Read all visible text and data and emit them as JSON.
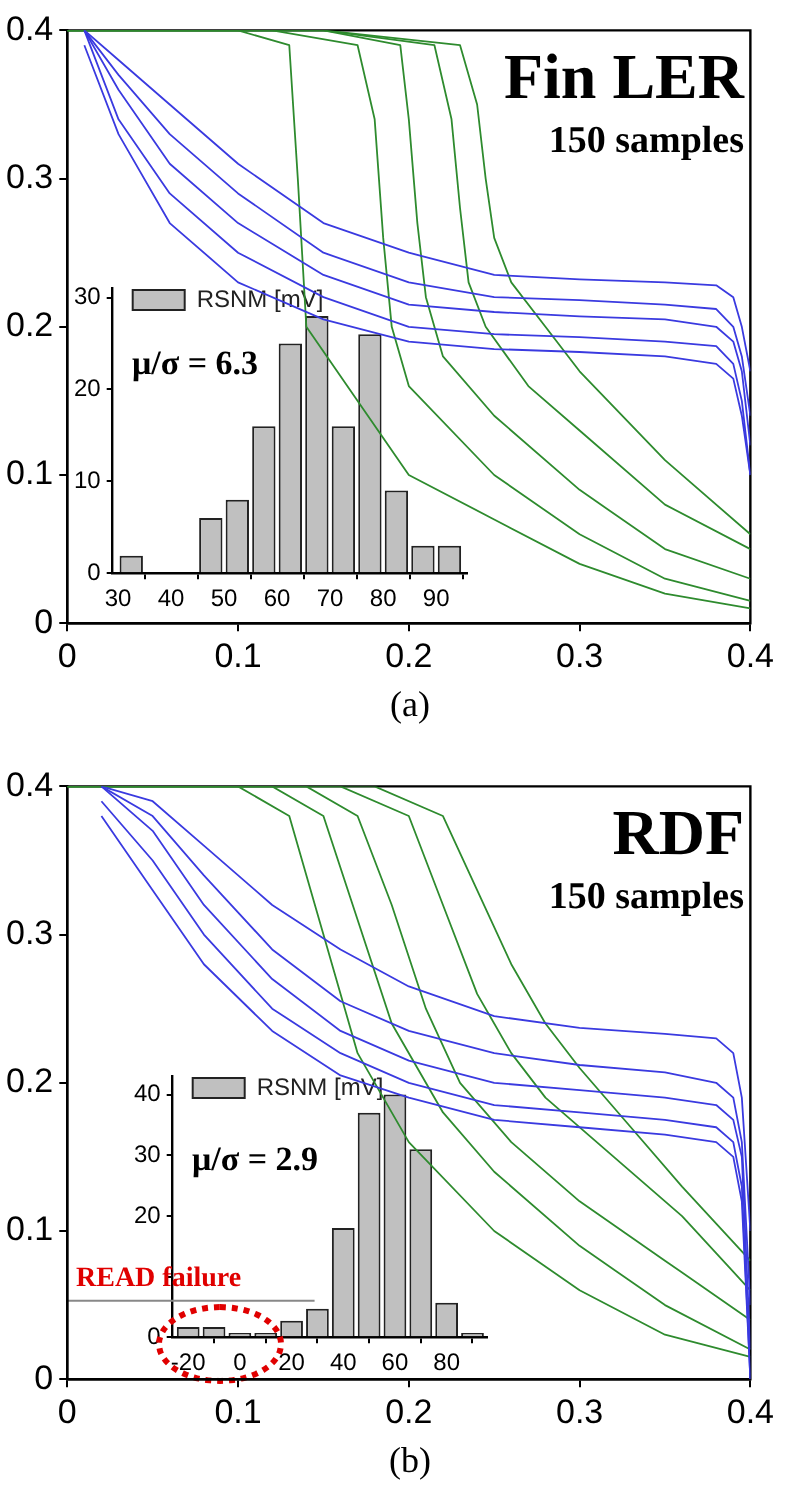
{
  "chart_data": [
    {
      "type": "line",
      "title": "Fin LER",
      "subtitle": "150 samples",
      "annotations": [
        "(a)"
      ],
      "marker": "none",
      "grid": false,
      "xlim": [
        0,
        0.4
      ],
      "ylim": [
        0,
        0.4
      ],
      "xticks": [
        0,
        0.1,
        0.2,
        0.3,
        0.4
      ],
      "yticks": [
        0,
        0.1,
        0.2,
        0.3,
        0.4
      ],
      "series": [
        {
          "color": "#3a3ae0",
          "x": [
            0.01,
            0.03,
            0.06,
            0.1,
            0.15,
            0.2,
            0.25,
            0.3,
            0.35,
            0.38,
            0.39,
            0.395,
            0.4
          ],
          "values": [
            0.4,
            0.38,
            0.35,
            0.31,
            0.27,
            0.25,
            0.235,
            0.232,
            0.23,
            0.228,
            0.22,
            0.2,
            0.17
          ]
        },
        {
          "color": "#3a3ae0",
          "x": [
            0.01,
            0.03,
            0.06,
            0.1,
            0.15,
            0.2,
            0.25,
            0.3,
            0.35,
            0.38,
            0.39,
            0.395,
            0.4
          ],
          "values": [
            0.4,
            0.37,
            0.33,
            0.29,
            0.25,
            0.23,
            0.22,
            0.218,
            0.215,
            0.212,
            0.2,
            0.18,
            0.14
          ]
        },
        {
          "color": "#3a3ae0",
          "x": [
            0.01,
            0.03,
            0.06,
            0.1,
            0.15,
            0.2,
            0.25,
            0.3,
            0.35,
            0.38,
            0.39,
            0.395,
            0.4
          ],
          "values": [
            0.4,
            0.36,
            0.31,
            0.27,
            0.235,
            0.215,
            0.21,
            0.207,
            0.205,
            0.2,
            0.19,
            0.17,
            0.12
          ]
        },
        {
          "color": "#3a3ae0",
          "x": [
            0.01,
            0.03,
            0.06,
            0.1,
            0.15,
            0.2,
            0.25,
            0.3,
            0.35,
            0.38,
            0.39,
            0.395,
            0.4
          ],
          "values": [
            0.4,
            0.34,
            0.29,
            0.25,
            0.22,
            0.2,
            0.195,
            0.193,
            0.19,
            0.187,
            0.175,
            0.15,
            0.1
          ]
        },
        {
          "color": "#3a3ae0",
          "x": [
            0.01,
            0.03,
            0.06,
            0.1,
            0.15,
            0.2,
            0.25,
            0.3,
            0.35,
            0.38,
            0.39,
            0.395,
            0.4
          ],
          "values": [
            0.39,
            0.33,
            0.27,
            0.23,
            0.205,
            0.19,
            0.185,
            0.183,
            0.18,
            0.175,
            0.165,
            0.14,
            0.1
          ]
        },
        {
          "color": "#2e8b2e",
          "x": [
            0,
            0.1,
            0.13,
            0.135,
            0.14,
            0.2,
            0.25,
            0.3,
            0.35,
            0.4
          ],
          "values": [
            0.4,
            0.4,
            0.39,
            0.3,
            0.2,
            0.1,
            0.07,
            0.04,
            0.02,
            0.01
          ]
        },
        {
          "color": "#2e8b2e",
          "x": [
            0,
            0.12,
            0.17,
            0.18,
            0.185,
            0.19,
            0.2,
            0.25,
            0.3,
            0.35,
            0.4
          ],
          "values": [
            0.4,
            0.4,
            0.39,
            0.34,
            0.26,
            0.2,
            0.16,
            0.1,
            0.06,
            0.03,
            0.015
          ]
        },
        {
          "color": "#2e8b2e",
          "x": [
            0,
            0.15,
            0.195,
            0.2,
            0.205,
            0.21,
            0.22,
            0.25,
            0.3,
            0.35,
            0.4
          ],
          "values": [
            0.4,
            0.4,
            0.39,
            0.34,
            0.27,
            0.22,
            0.18,
            0.14,
            0.09,
            0.05,
            0.03
          ]
        },
        {
          "color": "#2e8b2e",
          "x": [
            0,
            0.15,
            0.215,
            0.225,
            0.23,
            0.235,
            0.245,
            0.27,
            0.3,
            0.35,
            0.4
          ],
          "values": [
            0.4,
            0.4,
            0.39,
            0.34,
            0.28,
            0.23,
            0.2,
            0.16,
            0.13,
            0.08,
            0.05
          ]
        },
        {
          "color": "#2e8b2e",
          "x": [
            0,
            0.15,
            0.23,
            0.24,
            0.245,
            0.25,
            0.26,
            0.28,
            0.3,
            0.35,
            0.4
          ],
          "values": [
            0.4,
            0.4,
            0.39,
            0.35,
            0.3,
            0.26,
            0.23,
            0.2,
            0.17,
            0.11,
            0.06
          ]
        }
      ]
    },
    {
      "type": "histogram",
      "annotations": [
        "μ/σ = 6.3"
      ],
      "legend": "top left",
      "grid": false,
      "bins": [
        30,
        35,
        40,
        45,
        50,
        55,
        60,
        65,
        70,
        75,
        80,
        85,
        90,
        95
      ],
      "xlim": [
        29,
        96
      ],
      "ylim": [
        0,
        31
      ],
      "xticks": [
        30,
        40,
        50,
        60,
        70,
        80,
        90
      ],
      "yticks": [
        0,
        10,
        20,
        30
      ],
      "series": [
        {
          "name": "RSNM [mV]",
          "color": "#c0c0c0",
          "values": [
            1.9,
            0,
            0,
            6,
            8,
            16,
            25,
            28,
            16,
            26,
            9,
            3,
            3
          ]
        }
      ]
    },
    {
      "type": "line",
      "title": "RDF",
      "subtitle": "150 samples",
      "annotations": [
        "(b)"
      ],
      "marker": "none",
      "grid": false,
      "xlim": [
        0,
        0.4
      ],
      "ylim": [
        0,
        0.4
      ],
      "xticks": [
        0,
        0.1,
        0.2,
        0.3,
        0.4
      ],
      "yticks": [
        0,
        0.1,
        0.2,
        0.3,
        0.4
      ],
      "series": [
        {
          "color": "#3a3ae0",
          "x": [
            0.02,
            0.05,
            0.08,
            0.12,
            0.16,
            0.2,
            0.25,
            0.3,
            0.35,
            0.38,
            0.39,
            0.395,
            0.4
          ],
          "values": [
            0.4,
            0.39,
            0.36,
            0.32,
            0.29,
            0.265,
            0.245,
            0.237,
            0.233,
            0.23,
            0.22,
            0.19,
            0.1
          ]
        },
        {
          "color": "#3a3ae0",
          "x": [
            0.02,
            0.05,
            0.08,
            0.12,
            0.16,
            0.2,
            0.25,
            0.3,
            0.35,
            0.38,
            0.39,
            0.395,
            0.4
          ],
          "values": [
            0.4,
            0.38,
            0.34,
            0.29,
            0.255,
            0.235,
            0.22,
            0.212,
            0.207,
            0.2,
            0.19,
            0.16,
            0.05
          ]
        },
        {
          "color": "#3a3ae0",
          "x": [
            0.02,
            0.05,
            0.08,
            0.12,
            0.16,
            0.2,
            0.25,
            0.3,
            0.35,
            0.38,
            0.39,
            0.395,
            0.4
          ],
          "values": [
            0.4,
            0.37,
            0.32,
            0.27,
            0.235,
            0.215,
            0.2,
            0.195,
            0.19,
            0.185,
            0.175,
            0.15,
            0.02
          ]
        },
        {
          "color": "#3a3ae0",
          "x": [
            0.02,
            0.05,
            0.08,
            0.12,
            0.16,
            0.2,
            0.25,
            0.3,
            0.35,
            0.38,
            0.39,
            0.395,
            0.4
          ],
          "values": [
            0.39,
            0.35,
            0.3,
            0.25,
            0.22,
            0.2,
            0.185,
            0.18,
            0.175,
            0.17,
            0.16,
            0.13,
            0
          ]
        },
        {
          "color": "#3a3ae0",
          "x": [
            0.02,
            0.05,
            0.08,
            0.12,
            0.16,
            0.2,
            0.25,
            0.3,
            0.35,
            0.38,
            0.39,
            0.395,
            0.4
          ],
          "values": [
            0.38,
            0.33,
            0.28,
            0.235,
            0.205,
            0.19,
            0.175,
            0.17,
            0.165,
            0.16,
            0.15,
            0.12,
            0
          ]
        },
        {
          "color": "#2e8b2e",
          "x": [
            0,
            0.1,
            0.13,
            0.15,
            0.17,
            0.2,
            0.25,
            0.3,
            0.35,
            0.4
          ],
          "values": [
            0.4,
            0.4,
            0.38,
            0.3,
            0.22,
            0.16,
            0.1,
            0.06,
            0.03,
            0.015
          ]
        },
        {
          "color": "#2e8b2e",
          "x": [
            0,
            0.12,
            0.15,
            0.17,
            0.19,
            0.22,
            0.25,
            0.3,
            0.35,
            0.4
          ],
          "values": [
            0.4,
            0.4,
            0.38,
            0.31,
            0.24,
            0.18,
            0.14,
            0.09,
            0.05,
            0.02
          ]
        },
        {
          "color": "#2e8b2e",
          "x": [
            0,
            0.14,
            0.17,
            0.19,
            0.21,
            0.23,
            0.26,
            0.3,
            0.35,
            0.4
          ],
          "values": [
            0.4,
            0.4,
            0.38,
            0.32,
            0.25,
            0.2,
            0.16,
            0.12,
            0.08,
            0.04
          ]
        },
        {
          "color": "#2e8b2e",
          "x": [
            0,
            0.16,
            0.2,
            0.22,
            0.24,
            0.26,
            0.28,
            0.32,
            0.36,
            0.4
          ],
          "values": [
            0.4,
            0.4,
            0.38,
            0.32,
            0.26,
            0.22,
            0.19,
            0.15,
            0.11,
            0.06
          ]
        },
        {
          "color": "#2e8b2e",
          "x": [
            0,
            0.18,
            0.22,
            0.24,
            0.26,
            0.28,
            0.3,
            0.33,
            0.36,
            0.4
          ],
          "values": [
            0.4,
            0.4,
            0.38,
            0.33,
            0.28,
            0.24,
            0.21,
            0.17,
            0.13,
            0.08
          ]
        }
      ]
    },
    {
      "type": "histogram",
      "annotations": [
        "μ/σ = 2.9"
      ],
      "ref_lines": [
        {
          "axis": "y",
          "value": 6,
          "label": "READ failure",
          "color": "#888888"
        }
      ],
      "legend": "top left",
      "grid": false,
      "bins": [
        -25,
        -15,
        -5,
        5,
        15,
        25,
        35,
        45,
        55,
        65,
        75,
        85,
        95
      ],
      "xlim": [
        -26,
        96
      ],
      "ylim": [
        0,
        43
      ],
      "xticks": [
        -20,
        0,
        20,
        40,
        60,
        80
      ],
      "yticks": [
        0,
        {
          "value": 10,
          "label": null
        },
        20,
        30,
        40
      ],
      "series": [
        {
          "name": "RSNM [mV]",
          "color": "#c0c0c0",
          "values": [
            1.7,
            1.7,
            0.7,
            0.7,
            2.7,
            4.7,
            18,
            37,
            40,
            31,
            5.7,
            0.7
          ]
        }
      ]
    }
  ]
}
